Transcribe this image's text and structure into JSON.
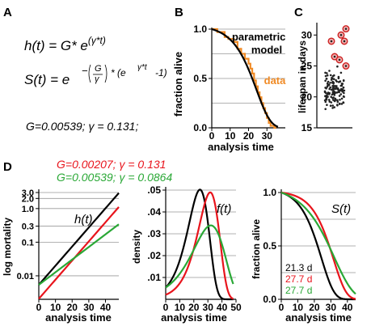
{
  "panels": {
    "A": {
      "letter": "A",
      "h_lhs": "h(t) = G* e",
      "h_exp": "(γ*t)",
      "s_lhs": "S(t) = e",
      "s_exp_neg": "−",
      "s_exp_G": "G",
      "s_exp_gamma": "γ",
      "s_exp_rest": "* (e",
      "s_exp_inner": "γ*t",
      "s_exp_end": "-1)",
      "params": "G=0.00539;  γ = 0.131;"
    },
    "B": {
      "letter": "B",
      "ylabel": "fraction alive",
      "xlabel": "analysis time",
      "legend_model": "parametric\nmodel",
      "legend_data": "data"
    },
    "C": {
      "letter": "C",
      "ylabel": "lifespan in days"
    },
    "D": {
      "letter": "D",
      "legend_red": "G=0.00207; γ = 0.131",
      "legend_green": "G=0.00539; γ = 0.0864",
      "h_title": "h(t)",
      "h_ylabel": "log mortality",
      "h_xlabel": "analysis time",
      "f_title": "f(t)",
      "f_ylabel": "density",
      "f_xlabel": "analysis time",
      "s_title": "S(t)",
      "s_ylabel": "fraction alive",
      "s_xlabel": "analysis time",
      "s_labels": [
        "21.3 d",
        "27.7 d",
        "27.7 d"
      ]
    }
  },
  "colors": {
    "black": "#000000",
    "red": "#e8141c",
    "green": "#2aa836",
    "orange": "#f08a24",
    "grid": "#999999",
    "dot_ring": "#cc2222"
  },
  "chart_data": [
    {
      "id": "B",
      "type": "line",
      "xlabel": "analysis time",
      "ylabel": "fraction alive",
      "xlim": [
        0,
        40
      ],
      "ylim": [
        0,
        1
      ],
      "xticks": [
        0,
        10,
        20,
        30
      ],
      "yticks": [
        0.0,
        0.5,
        1.0
      ],
      "grid": "horizontal",
      "legend": "top-right",
      "series": [
        {
          "name": "parametric model",
          "kind": "curve",
          "G": 0.00539,
          "gamma": 0.131,
          "color": "#000000"
        },
        {
          "name": "data",
          "kind": "step",
          "color": "#f08a24",
          "x": [
            0,
            3,
            7,
            9,
            12,
            14,
            16,
            18,
            20,
            21,
            22,
            23,
            24,
            25,
            26,
            27,
            28,
            29,
            30,
            31,
            32,
            34
          ],
          "y": [
            1.0,
            0.97,
            0.92,
            0.9,
            0.87,
            0.8,
            0.75,
            0.7,
            0.65,
            0.6,
            0.55,
            0.48,
            0.42,
            0.36,
            0.31,
            0.25,
            0.2,
            0.15,
            0.1,
            0.05,
            0.02,
            0.0
          ]
        }
      ]
    },
    {
      "id": "C",
      "type": "scatter",
      "ylabel": "lifespan in days",
      "ylim": [
        15,
        32
      ],
      "yticks": [
        15,
        20,
        25,
        30
      ],
      "outliers": [
        31,
        30,
        29,
        29,
        26.5,
        26,
        25
      ]
    },
    {
      "id": "D-h",
      "type": "line",
      "title": "h(t)",
      "xlabel": "analysis time",
      "ylabel": "log mortality",
      "xlim": [
        0,
        48
      ],
      "scale_y": "log",
      "ylim": [
        0.002,
        3.0
      ],
      "xticks": [
        0,
        10,
        20,
        30,
        40
      ],
      "yticks": [
        0.01,
        0.1,
        0.3,
        1.0,
        2.0,
        3.0
      ],
      "ytick_labels": [
        "0.01",
        "0.1",
        "0.3",
        "1.0",
        "2.0",
        "3.0"
      ],
      "series": [
        {
          "G": 0.00539,
          "gamma": 0.131,
          "color": "#000000"
        },
        {
          "G": 0.00207,
          "gamma": 0.131,
          "color": "#e8141c"
        },
        {
          "G": 0.00539,
          "gamma": 0.0864,
          "color": "#2aa836"
        }
      ]
    },
    {
      "id": "D-f",
      "type": "line",
      "title": "f(t)",
      "xlabel": "analysis time",
      "ylabel": "density",
      "xlim": [
        0,
        50
      ],
      "ylim": [
        0,
        0.05
      ],
      "xticks": [
        0,
        10,
        20,
        30,
        40,
        50
      ],
      "yticks": [
        0.01,
        0.02,
        0.03,
        0.04,
        0.05
      ],
      "ytick_labels": [
        ".01",
        ".02",
        ".03",
        ".04",
        ".05"
      ],
      "series": [
        {
          "G": 0.00539,
          "gamma": 0.131,
          "color": "#000000"
        },
        {
          "G": 0.00207,
          "gamma": 0.131,
          "color": "#e8141c"
        },
        {
          "G": 0.00539,
          "gamma": 0.0864,
          "color": "#2aa836"
        }
      ]
    },
    {
      "id": "D-S",
      "type": "line",
      "title": "S(t)",
      "xlabel": "analysis time",
      "ylabel": "fraction alive",
      "xlim": [
        0,
        45
      ],
      "ylim": [
        0,
        1
      ],
      "xticks": [
        0,
        10,
        20,
        30,
        40
      ],
      "yticks": [
        0.0,
        0.5,
        1.0
      ],
      "series": [
        {
          "G": 0.00539,
          "gamma": 0.131,
          "color": "#000000",
          "label": "21.3 d"
        },
        {
          "G": 0.00207,
          "gamma": 0.131,
          "color": "#e8141c",
          "label": "27.7 d"
        },
        {
          "G": 0.00539,
          "gamma": 0.0864,
          "color": "#2aa836",
          "label": "27.7 d"
        }
      ]
    }
  ]
}
